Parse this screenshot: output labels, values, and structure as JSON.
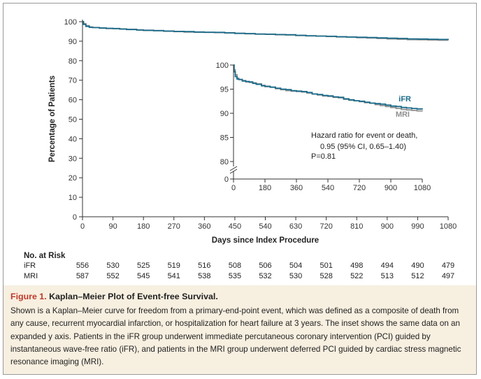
{
  "chart_data": [
    {
      "type": "line",
      "title": "",
      "xlabel": "Days since Index Procedure",
      "ylabel": "Percentage of Patients",
      "xlim": [
        0,
        1080
      ],
      "ylim": [
        0,
        100
      ],
      "x_ticks": [
        "0",
        "90",
        "180",
        "270",
        "360",
        "450",
        "540",
        "630",
        "720",
        "810",
        "900",
        "990",
        "1080"
      ],
      "y_ticks": [
        "0",
        "10",
        "20",
        "30",
        "40",
        "50",
        "60",
        "70",
        "80",
        "90",
        "100"
      ],
      "colors": {
        "iFR": "#1a6b8a",
        "MRI": "#8f8f8f"
      },
      "series": [
        {
          "name": "iFR",
          "x": [
            0,
            3,
            10,
            20,
            30,
            50,
            70,
            90,
            110,
            130,
            160,
            180,
            210,
            240,
            270,
            300,
            330,
            360,
            390,
            420,
            450,
            480,
            510,
            540,
            570,
            600,
            630,
            660,
            690,
            720,
            750,
            780,
            810,
            840,
            870,
            900,
            930,
            960,
            990,
            1020,
            1050,
            1080
          ],
          "y": [
            100,
            98.6,
            97.6,
            97.1,
            97.0,
            96.7,
            96.6,
            96.5,
            96.2,
            96.0,
            95.7,
            95.6,
            95.4,
            95.2,
            95.0,
            94.9,
            94.7,
            94.6,
            94.5,
            94.3,
            94.0,
            93.9,
            93.7,
            93.6,
            93.4,
            93.3,
            93.0,
            92.8,
            92.6,
            92.5,
            92.3,
            92.1,
            92.0,
            91.9,
            91.7,
            91.5,
            91.4,
            91.2,
            91.1,
            91.0,
            90.9,
            90.8
          ]
        },
        {
          "name": "MRI",
          "x": [
            0,
            3,
            10,
            20,
            30,
            50,
            70,
            90,
            110,
            130,
            160,
            180,
            210,
            240,
            270,
            300,
            330,
            360,
            390,
            420,
            450,
            480,
            510,
            540,
            570,
            600,
            630,
            660,
            690,
            720,
            750,
            780,
            810,
            840,
            870,
            900,
            930,
            960,
            990,
            1020,
            1050,
            1080
          ],
          "y": [
            100,
            99.0,
            98.0,
            97.3,
            97.0,
            96.8,
            96.5,
            96.4,
            96.3,
            96.1,
            95.8,
            95.5,
            95.4,
            95.1,
            94.9,
            94.7,
            94.6,
            94.5,
            94.4,
            94.2,
            94.0,
            93.8,
            93.6,
            93.5,
            93.3,
            93.2,
            92.9,
            92.7,
            92.6,
            92.4,
            92.2,
            92.1,
            91.8,
            91.6,
            91.4,
            91.2,
            91.0,
            90.8,
            90.7,
            90.6,
            90.5,
            90.4
          ]
        }
      ]
    },
    {
      "type": "line",
      "title": "",
      "xlim": [
        0,
        1080
      ],
      "ylim": [
        80,
        100
      ],
      "axis_break": true,
      "x_ticks": [
        "0",
        "180",
        "360",
        "540",
        "720",
        "900",
        "1080"
      ],
      "y_ticks": [
        "0",
        "80",
        "85",
        "90",
        "95",
        "100"
      ],
      "series_labels": [
        "iFR",
        "MRI"
      ],
      "annotation": [
        "Hazard ratio for event or death,",
        "0.95 (95% CI, 0.65–1.40)",
        "P=0.81"
      ]
    }
  ],
  "risk_table": {
    "header": "No. at Risk",
    "rows": [
      {
        "label": "iFR",
        "values": [
          "556",
          "530",
          "525",
          "519",
          "516",
          "508",
          "506",
          "504",
          "501",
          "498",
          "494",
          "490",
          "479"
        ]
      },
      {
        "label": "MRI",
        "values": [
          "587",
          "552",
          "545",
          "541",
          "538",
          "535",
          "532",
          "530",
          "528",
          "522",
          "513",
          "512",
          "497"
        ]
      }
    ]
  },
  "caption": {
    "figure_label": "Figure 1.",
    "title": "Kaplan–Meier Plot of Event-free Survival.",
    "body": "Shown is a Kaplan–Meier curve for freedom from a primary-end-point event, which was defined as a composite of death from any cause, recurrent myocardial infarction, or hospitalization for heart failure at 3 years. The inset shows the same data on an expanded y axis. Patients in the iFR group underwent immediate percutaneous coronary intervention (PCI) guided by instantaneous wave-free ratio (iFR), and patients in the MRI group underwent deferred PCI guided by cardiac stress magnetic resonance imaging (MRI)."
  }
}
